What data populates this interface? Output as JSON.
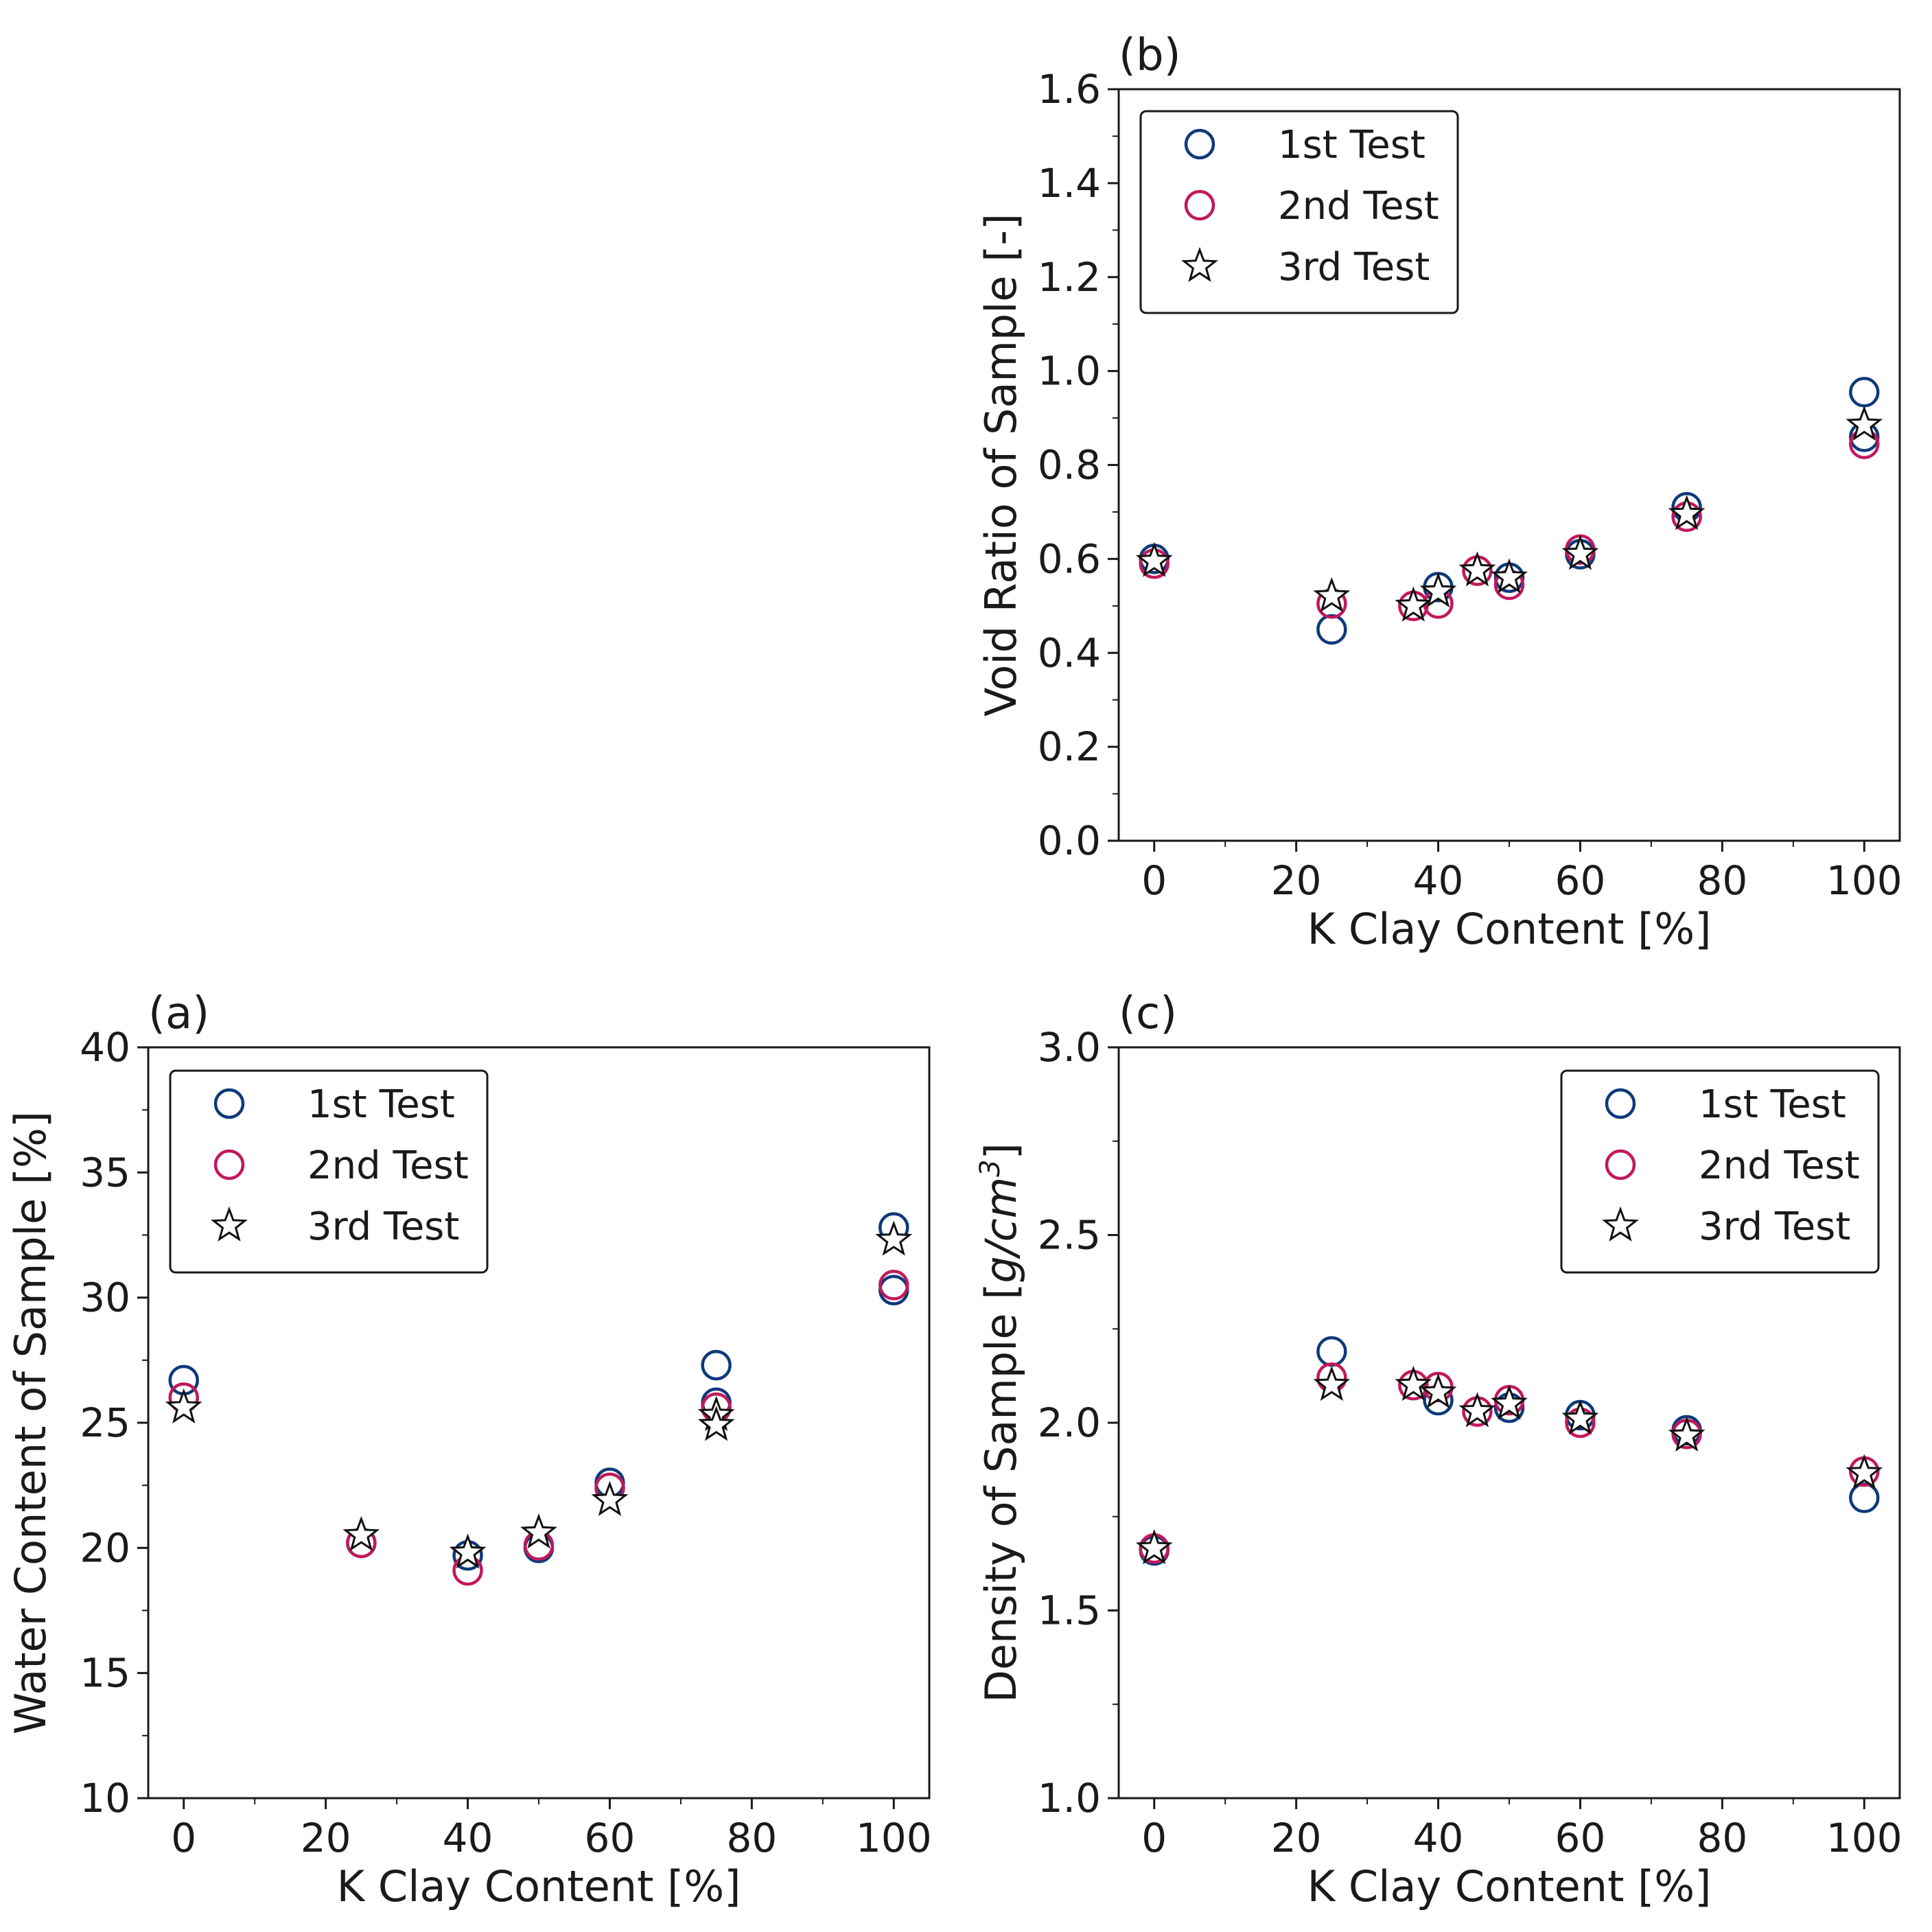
{
  "colors": {
    "first": "#0d3a7a",
    "second": "#c2185b",
    "third": "#111111"
  },
  "chart_data": [
    {
      "id": "a",
      "panel_label": "(a)",
      "type": "scatter",
      "xlabel": "K Clay Content [%]",
      "ylabel": "Water Content of Sample [%]",
      "xlim": [
        -5,
        105
      ],
      "ylim": [
        10,
        40
      ],
      "xticks": [
        0,
        20,
        40,
        60,
        80,
        100
      ],
      "yticks": [
        10,
        15,
        20,
        25,
        30,
        35,
        40
      ],
      "legend_loc": "top-left",
      "series": [
        {
          "name": "1st Test",
          "marker": "circle",
          "color": "#0d3a7a",
          "points": [
            [
              0,
              26.7
            ],
            [
              25,
              20.2
            ],
            [
              40,
              19.7
            ],
            [
              50,
              20.0
            ],
            [
              60,
              22.6
            ],
            [
              75,
              27.3
            ],
            [
              75,
              25.8
            ],
            [
              100,
              32.8
            ],
            [
              100,
              30.3
            ]
          ]
        },
        {
          "name": "2nd Test",
          "marker": "circle",
          "color": "#c2185b",
          "points": [
            [
              0,
              26.0
            ],
            [
              25,
              20.2
            ],
            [
              40,
              19.1
            ],
            [
              50,
              20.1
            ],
            [
              60,
              22.4
            ],
            [
              75,
              25.6
            ],
            [
              100,
              30.5
            ]
          ]
        },
        {
          "name": "3rd Test",
          "marker": "star",
          "color": "#111111",
          "points": [
            [
              0,
              25.6
            ],
            [
              25,
              20.5
            ],
            [
              40,
              19.8
            ],
            [
              50,
              20.6
            ],
            [
              60,
              21.9
            ],
            [
              75,
              25.3
            ],
            [
              75,
              24.9
            ],
            [
              100,
              32.3
            ]
          ]
        }
      ]
    },
    {
      "id": "b",
      "panel_label": "(b)",
      "type": "scatter",
      "xlabel": "K Clay Content [%]",
      "ylabel": "Void Ratio of Sample [-]",
      "xlim": [
        -5,
        105
      ],
      "ylim": [
        0.0,
        1.6
      ],
      "xticks": [
        0,
        20,
        40,
        60,
        80,
        100
      ],
      "yticks": [
        0.0,
        0.2,
        0.4,
        0.6,
        0.8,
        1.0,
        1.2,
        1.4,
        1.6
      ],
      "legend_loc": "top-left",
      "series": [
        {
          "name": "1st Test",
          "marker": "circle",
          "color": "#0d3a7a",
          "points": [
            [
              0,
              0.6
            ],
            [
              25,
              0.45
            ],
            [
              40,
              0.54
            ],
            [
              50,
              0.56
            ],
            [
              60,
              0.61
            ],
            [
              75,
              0.71
            ],
            [
              100,
              0.955
            ],
            [
              100,
              0.86
            ]
          ]
        },
        {
          "name": "2nd Test",
          "marker": "circle",
          "color": "#c2185b",
          "points": [
            [
              0,
              0.59
            ],
            [
              25,
              0.505
            ],
            [
              36.5,
              0.5
            ],
            [
              40,
              0.505
            ],
            [
              45.5,
              0.575
            ],
            [
              50,
              0.545
            ],
            [
              60,
              0.62
            ],
            [
              75,
              0.69
            ],
            [
              100,
              0.845
            ]
          ]
        },
        {
          "name": "3rd Test",
          "marker": "star",
          "color": "#111111",
          "points": [
            [
              0,
              0.595
            ],
            [
              25,
              0.52
            ],
            [
              36.5,
              0.5
            ],
            [
              40,
              0.53
            ],
            [
              45.5,
              0.575
            ],
            [
              50,
              0.56
            ],
            [
              60,
              0.61
            ],
            [
              75,
              0.695
            ],
            [
              100,
              0.885
            ]
          ]
        }
      ]
    },
    {
      "id": "c",
      "panel_label": "(c)",
      "type": "scatter",
      "xlabel": "K Clay Content [%]",
      "ylabel_parts": [
        "Density of Sample [",
        "g/cm",
        "3",
        "]"
      ],
      "xlim": [
        -5,
        105
      ],
      "ylim": [
        1.0,
        3.0
      ],
      "xticks": [
        0,
        20,
        40,
        60,
        80,
        100
      ],
      "yticks": [
        1.0,
        1.5,
        2.0,
        2.5,
        3.0
      ],
      "legend_loc": "top-right",
      "series": [
        {
          "name": "1st Test",
          "marker": "circle",
          "color": "#0d3a7a",
          "points": [
            [
              0,
              1.66
            ],
            [
              25,
              2.19
            ],
            [
              40,
              2.06
            ],
            [
              50,
              2.04
            ],
            [
              60,
              2.02
            ],
            [
              75,
              1.98
            ],
            [
              100,
              1.8
            ]
          ]
        },
        {
          "name": "2nd Test",
          "marker": "circle",
          "color": "#c2185b",
          "points": [
            [
              0,
              1.665
            ],
            [
              25,
              2.12
            ],
            [
              36.5,
              2.1
            ],
            [
              40,
              2.095
            ],
            [
              45.5,
              2.03
            ],
            [
              50,
              2.06
            ],
            [
              60,
              2.0
            ],
            [
              75,
              1.97
            ],
            [
              100,
              1.87
            ]
          ]
        },
        {
          "name": "3rd Test",
          "marker": "star",
          "color": "#111111",
          "points": [
            [
              0,
              1.665
            ],
            [
              25,
              2.1
            ],
            [
              36.5,
              2.1
            ],
            [
              40,
              2.08
            ],
            [
              45.5,
              2.03
            ],
            [
              50,
              2.05
            ],
            [
              60,
              2.01
            ],
            [
              75,
              1.965
            ],
            [
              100,
              1.865
            ]
          ]
        }
      ]
    }
  ]
}
